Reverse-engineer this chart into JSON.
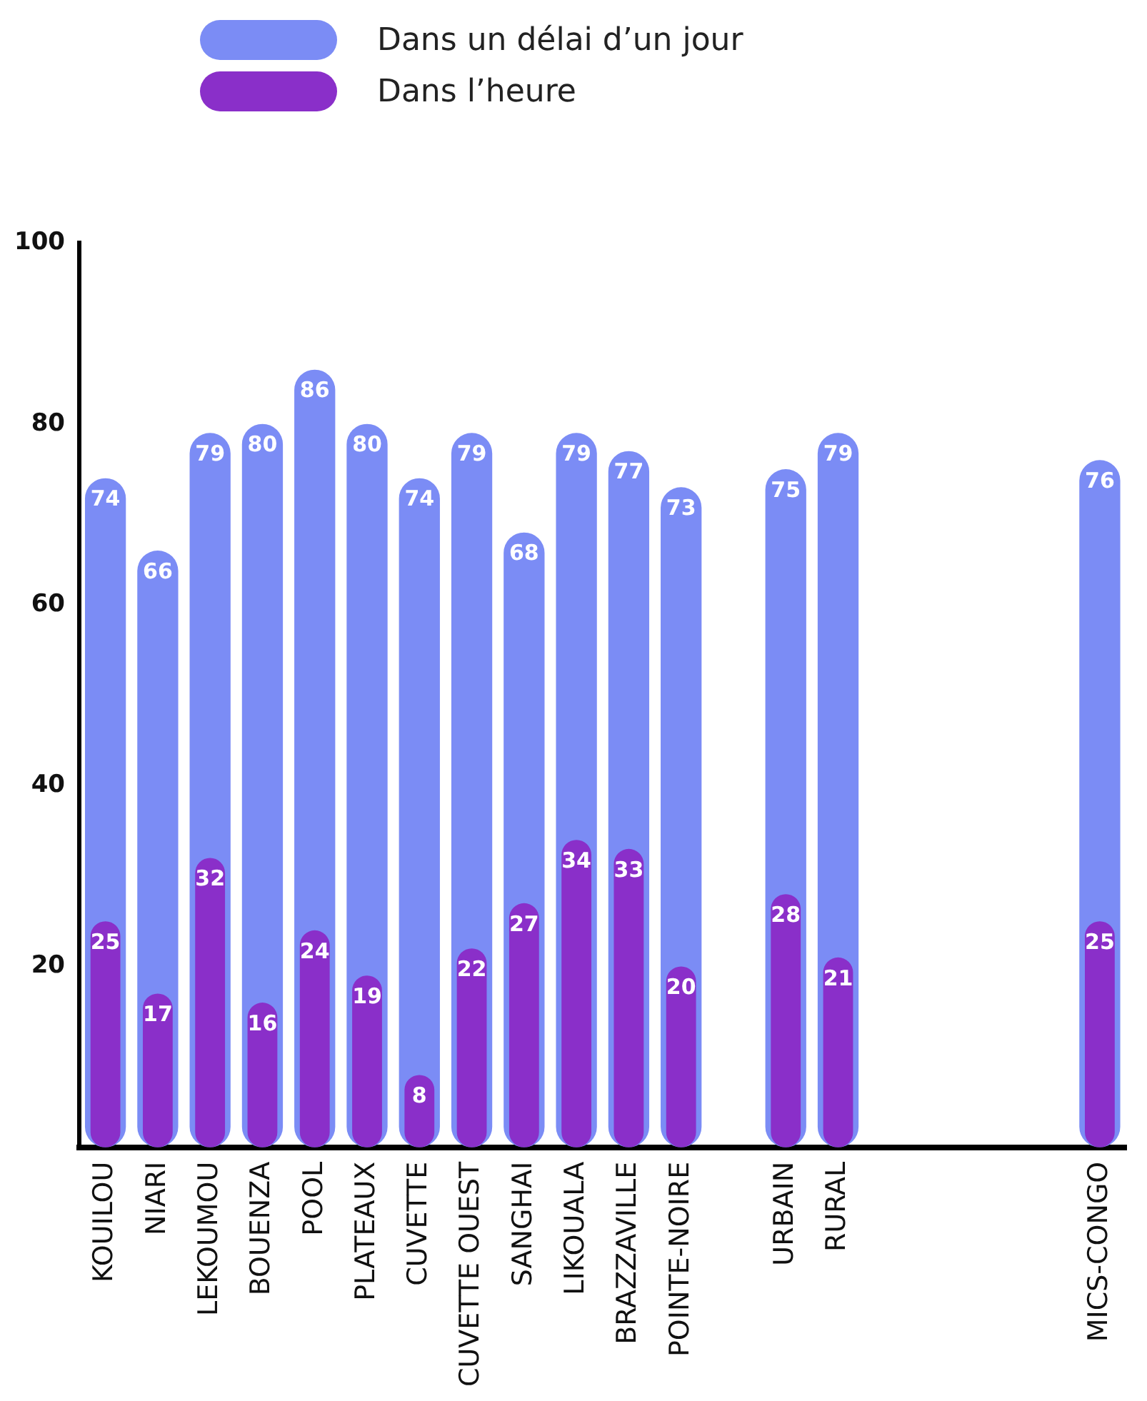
{
  "chart_data": {
    "type": "bar",
    "categories": [
      "KOUILOU",
      "NIARI",
      "LEKOUMOU",
      "BOUENZA",
      "POOL",
      "PLATEAUX",
      "CUVETTE",
      "CUVETTE OUEST",
      "SANGHAI",
      "LIKOUALA",
      "BRAZZAVILLE",
      "POINTE-NOIRE",
      null,
      "URBAIN",
      "RURAL",
      null,
      null,
      null,
      null,
      "MICS-CONGO"
    ],
    "series": [
      {
        "name": "Dans un délai d’un jour",
        "color": "#7b8cf5",
        "values": [
          74,
          66,
          79,
          80,
          86,
          80,
          74,
          79,
          68,
          79,
          77,
          73,
          null,
          75,
          79,
          null,
          null,
          null,
          null,
          76
        ]
      },
      {
        "name": "Dans l’heure",
        "color": "#8a2fc9",
        "values": [
          25,
          17,
          32,
          16,
          24,
          19,
          8,
          22,
          27,
          34,
          33,
          20,
          null,
          28,
          21,
          null,
          null,
          null,
          null,
          25
        ]
      }
    ],
    "ylim": [
      0,
      100
    ],
    "yticks": [
      20,
      40,
      60,
      80,
      100
    ],
    "grid": false,
    "legend": "top left",
    "data_labels": true
  }
}
